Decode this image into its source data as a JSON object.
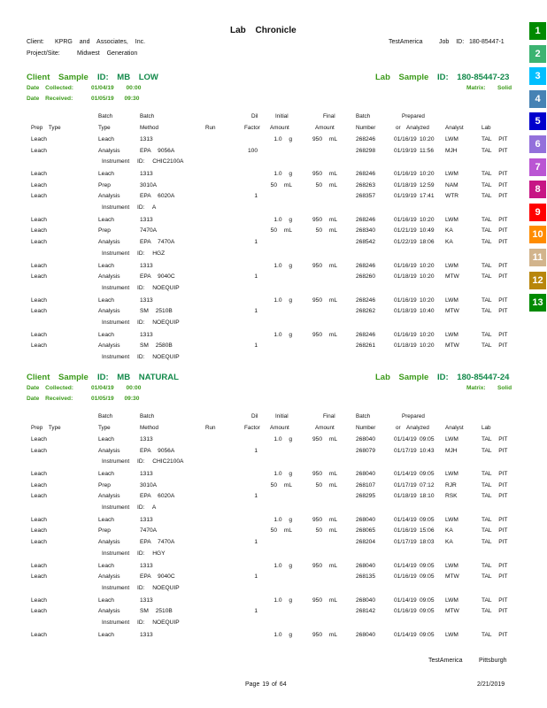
{
  "title": "Lab Chronicle",
  "header": {
    "client_label": "Client:",
    "client": "KPRG and Associates, Inc.",
    "project_label": "Project/Site:",
    "project": "Midwest Generation",
    "lab_name": "TestAmerica",
    "job_label": "Job ID:",
    "job_id": "180-85447-1"
  },
  "side_tabs": [
    {
      "label": "1",
      "color": "#008a00"
    },
    {
      "label": "2",
      "color": "#3cb371"
    },
    {
      "label": "3",
      "color": "#00bfff"
    },
    {
      "label": "4",
      "color": "#4682b4"
    },
    {
      "label": "5",
      "color": "#0000cd"
    },
    {
      "label": "6",
      "color": "#9370db"
    },
    {
      "label": "7",
      "color": "#ba55d3"
    },
    {
      "label": "8",
      "color": "#c71585"
    },
    {
      "label": "9",
      "color": "#ff0000"
    },
    {
      "label": "10",
      "color": "#ff8c00"
    },
    {
      "label": "11",
      "color": "#d2b48c"
    },
    {
      "label": "12",
      "color": "#b8860b"
    },
    {
      "label": "13",
      "color": "#008a00"
    }
  ],
  "columns": {
    "batch_top": "Batch",
    "dil_top": "Dil",
    "initial_top": "Initial",
    "final_top": "Final",
    "prepared_top": "Prepared",
    "prep_type": "Prep Type",
    "batch_type": "Type",
    "batch_method": "Method",
    "run": "Run",
    "factor": "Factor",
    "amount": "Amount",
    "number": "Number",
    "or_analyzed": "or Analyzed",
    "analyst": "Analyst",
    "lab": "Lab"
  },
  "samples": [
    {
      "client_sample_label": "Client Sample",
      "client_sample_id": "ID: MB LOW",
      "lab_sample_label": "Lab Sample",
      "lab_sample_id": "ID: 180-85447-23",
      "collected_label": "Date Collected:",
      "collected": "01/04/19 00:00",
      "received_label": "Date Received:",
      "received": "01/05/19 09:30",
      "matrix_label": "Matrix:",
      "matrix": "Solid",
      "groups": [
        {
          "rows": [
            [
              "Leach",
              "Leach",
              "1313",
              "",
              "1.0 g",
              "950 mL",
              "268246",
              "01/16/19",
              "10:20",
              "LWM",
              "TAL PIT"
            ],
            [
              "Leach",
              "Analysis",
              "EPA 9056A",
              "100",
              "",
              "",
              "268298",
              "01/19/19",
              "11:56",
              "MJH",
              "TAL PIT"
            ]
          ],
          "instrument": "Instrument ID: CHIC2100A"
        },
        {
          "rows": [
            [
              "Leach",
              "Leach",
              "1313",
              "",
              "1.0 g",
              "950 mL",
              "268246",
              "01/16/19",
              "10:20",
              "LWM",
              "TAL PIT"
            ],
            [
              "Leach",
              "Prep",
              "3010A",
              "",
              "50 mL",
              "50 mL",
              "268263",
              "01/18/19",
              "12:59",
              "NAM",
              "TAL PIT"
            ],
            [
              "Leach",
              "Analysis",
              "EPA 6020A",
              "1",
              "",
              "",
              "268357",
              "01/19/19",
              "17:41",
              "WTR",
              "TAL PIT"
            ]
          ],
          "instrument": "Instrument ID: A"
        },
        {
          "rows": [
            [
              "Leach",
              "Leach",
              "1313",
              "",
              "1.0 g",
              "950 mL",
              "268246",
              "01/16/19",
              "10:20",
              "LWM",
              "TAL PIT"
            ],
            [
              "Leach",
              "Prep",
              "7470A",
              "",
              "50 mL",
              "50 mL",
              "268340",
              "01/21/19",
              "10:49",
              "KA",
              "TAL PIT"
            ],
            [
              "Leach",
              "Analysis",
              "EPA 7470A",
              "1",
              "",
              "",
              "268542",
              "01/22/19",
              "18:06",
              "KA",
              "TAL PIT"
            ]
          ],
          "instrument": "Instrument ID: HGZ"
        },
        {
          "rows": [
            [
              "Leach",
              "Leach",
              "1313",
              "",
              "1.0 g",
              "950 mL",
              "268246",
              "01/16/19",
              "10:20",
              "LWM",
              "TAL PIT"
            ],
            [
              "Leach",
              "Analysis",
              "EPA 9040C",
              "1",
              "",
              "",
              "268260",
              "01/18/19",
              "10:20",
              "MTW",
              "TAL PIT"
            ]
          ],
          "instrument": "Instrument ID: NOEQUIP"
        },
        {
          "rows": [
            [
              "Leach",
              "Leach",
              "1313",
              "",
              "1.0 g",
              "950 mL",
              "268246",
              "01/16/19",
              "10:20",
              "LWM",
              "TAL PIT"
            ],
            [
              "Leach",
              "Analysis",
              "SM 2510B",
              "1",
              "",
              "",
              "268262",
              "01/18/19",
              "10:40",
              "MTW",
              "TAL PIT"
            ]
          ],
          "instrument": "Instrument ID: NOEQUIP"
        },
        {
          "rows": [
            [
              "Leach",
              "Leach",
              "1313",
              "",
              "1.0 g",
              "950 mL",
              "268246",
              "01/16/19",
              "10:20",
              "LWM",
              "TAL PIT"
            ],
            [
              "Leach",
              "Analysis",
              "SM 2580B",
              "1",
              "",
              "",
              "268261",
              "01/18/19",
              "10:20",
              "MTW",
              "TAL PIT"
            ]
          ],
          "instrument": "Instrument ID: NOEQUIP"
        }
      ]
    },
    {
      "client_sample_label": "Client Sample",
      "client_sample_id": "ID: MB NATURAL",
      "lab_sample_label": "Lab Sample",
      "lab_sample_id": "ID: 180-85447-24",
      "collected_label": "Date Collected:",
      "collected": "01/04/19 00:00",
      "received_label": "Date Received:",
      "received": "01/05/19 09:30",
      "matrix_label": "Matrix:",
      "matrix": "Solid",
      "groups": [
        {
          "rows": [
            [
              "Leach",
              "Leach",
              "1313",
              "",
              "1.0 g",
              "950 mL",
              "268040",
              "01/14/19",
              "09:05",
              "LWM",
              "TAL PIT"
            ],
            [
              "Leach",
              "Analysis",
              "EPA 9056A",
              "1",
              "",
              "",
              "268079",
              "01/17/19",
              "10:43",
              "MJH",
              "TAL PIT"
            ]
          ],
          "instrument": "Instrument ID: CHIC2100A"
        },
        {
          "rows": [
            [
              "Leach",
              "Leach",
              "1313",
              "",
              "1.0 g",
              "950 mL",
              "268040",
              "01/14/19",
              "09:05",
              "LWM",
              "TAL PIT"
            ],
            [
              "Leach",
              "Prep",
              "3010A",
              "",
              "50 mL",
              "50 mL",
              "268107",
              "01/17/19",
              "07:12",
              "RJR",
              "TAL PIT"
            ],
            [
              "Leach",
              "Analysis",
              "EPA 6020A",
              "1",
              "",
              "",
              "268295",
              "01/18/19",
              "18:10",
              "RSK",
              "TAL PIT"
            ]
          ],
          "instrument": "Instrument ID: A"
        },
        {
          "rows": [
            [
              "Leach",
              "Leach",
              "1313",
              "",
              "1.0 g",
              "950 mL",
              "268040",
              "01/14/19",
              "09:05",
              "LWM",
              "TAL PIT"
            ],
            [
              "Leach",
              "Prep",
              "7470A",
              "",
              "50 mL",
              "50 mL",
              "268065",
              "01/16/19",
              "15:06",
              "KA",
              "TAL PIT"
            ],
            [
              "Leach",
              "Analysis",
              "EPA 7470A",
              "1",
              "",
              "",
              "268204",
              "01/17/19",
              "18:03",
              "KA",
              "TAL PIT"
            ]
          ],
          "instrument": "Instrument ID: HGY"
        },
        {
          "rows": [
            [
              "Leach",
              "Leach",
              "1313",
              "",
              "1.0 g",
              "950 mL",
              "268040",
              "01/14/19",
              "09:05",
              "LWM",
              "TAL PIT"
            ],
            [
              "Leach",
              "Analysis",
              "EPA 9040C",
              "1",
              "",
              "",
              "268135",
              "01/16/19",
              "09:05",
              "MTW",
              "TAL PIT"
            ]
          ],
          "instrument": "Instrument ID: NOEQUIP"
        },
        {
          "rows": [
            [
              "Leach",
              "Leach",
              "1313",
              "",
              "1.0 g",
              "950 mL",
              "268040",
              "01/14/19",
              "09:05",
              "LWM",
              "TAL PIT"
            ],
            [
              "Leach",
              "Analysis",
              "SM 2510B",
              "1",
              "",
              "",
              "268142",
              "01/16/19",
              "09:05",
              "MTW",
              "TAL PIT"
            ]
          ],
          "instrument": "Instrument ID: NOEQUIP"
        },
        {
          "rows": [
            [
              "Leach",
              "Leach",
              "1313",
              "",
              "1.0 g",
              "950 mL",
              "268040",
              "01/14/19",
              "09:05",
              "LWM",
              "TAL PIT"
            ]
          ],
          "instrument": ""
        }
      ]
    }
  ],
  "footer": {
    "lab_name": "TestAmerica",
    "location": "Pittsburgh",
    "page": "Page 19 of 64",
    "date": "2/21/2019"
  }
}
